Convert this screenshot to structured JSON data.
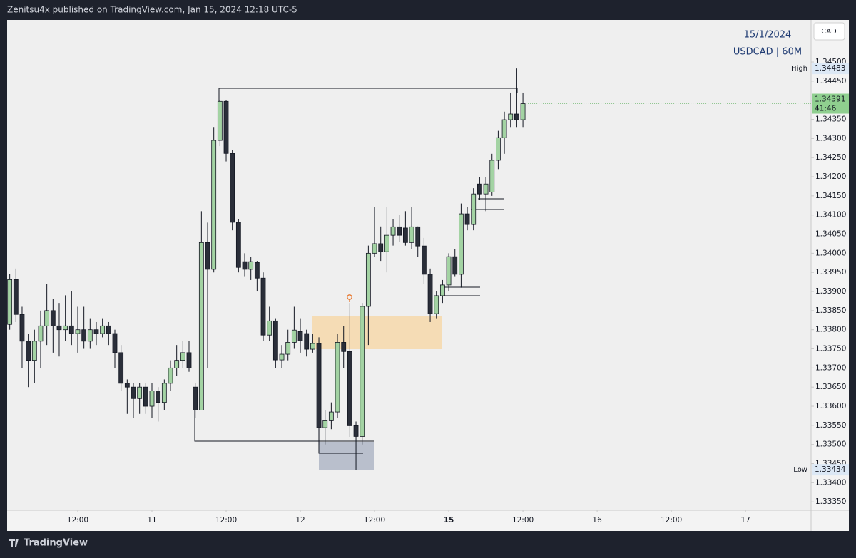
{
  "header": {
    "text": "Zenitsu4x published on TradingView.com, Jan 15, 2024 12:18 UTC-5"
  },
  "footer": {
    "brand": "TradingView"
  },
  "chart_data": {
    "type": "candlestick",
    "date_text": "15/1/2024",
    "symbol_text": "USDCAD | 60M",
    "currency": "CAD",
    "up_color": "#a3d3a3",
    "down_color": "#2a2e39",
    "open": [
      1.33814,
      1.33931,
      1.3384,
      1.3377,
      1.3372,
      1.3377,
      1.3381,
      1.3385,
      1.3381,
      1.338,
      1.3381,
      1.3379,
      1.338,
      1.3377,
      1.338,
      1.3379,
      1.3381,
      1.3379,
      1.3374,
      1.3366,
      1.3365,
      1.3362,
      1.3365,
      1.336,
      1.3364,
      1.3361,
      1.3366,
      1.337,
      1.3372,
      1.3374,
      1.3365,
      1.3359,
      1.34028,
      1.33958,
      1.34295,
      1.34397,
      1.34261,
      1.34081,
      1.33978,
      1.33958,
      1.33976,
      1.33935,
      1.33786,
      1.33823,
      1.33721,
      1.33736,
      1.33767,
      1.33795,
      1.3379,
      1.33749,
      1.33764,
      1.33544,
      1.33562,
      1.33585,
      1.33767,
      1.33743,
      1.33549,
      1.33521,
      1.33861,
      1.34,
      1.34025,
      1.34004,
      1.34047,
      1.34069,
      1.34066,
      1.34028,
      1.34069,
      1.34019,
      1.33945,
      1.33842,
      1.33889,
      1.33917,
      1.33991,
      1.33945,
      1.34103,
      1.34075,
      1.34181,
      1.34155,
      1.3416,
      1.34243,
      1.34302,
      1.34349,
      1.34364,
      1.34349
    ],
    "high": [
      1.33945,
      1.3396,
      1.3386,
      1.3379,
      1.338,
      1.3385,
      1.3392,
      1.3388,
      1.3387,
      1.3389,
      1.339,
      1.3386,
      1.3386,
      1.3383,
      1.3382,
      1.3383,
      1.3382,
      1.338,
      1.3376,
      1.3367,
      1.3366,
      1.3366,
      1.3366,
      1.3366,
      1.3365,
      1.3367,
      1.3372,
      1.3376,
      1.3377,
      1.3377,
      1.3366,
      1.3411,
      1.3408,
      1.3433,
      1.344,
      1.344,
      1.3427,
      1.3409,
      1.34,
      1.3399,
      1.3398,
      1.3395,
      1.3386,
      1.3383,
      1.3376,
      1.338,
      1.3386,
      1.3383,
      1.338,
      1.3379,
      1.3378,
      1.3359,
      1.3361,
      1.3379,
      1.3381,
      1.3387,
      1.3356,
      1.3387,
      1.3402,
      1.3412,
      1.3407,
      1.3412,
      1.3409,
      1.341,
      1.3411,
      1.3412,
      1.3407,
      1.3404,
      1.3396,
      1.339,
      1.3393,
      1.34,
      1.3401,
      1.3413,
      1.3412,
      1.3417,
      1.342,
      1.342,
      1.3426,
      1.3432,
      1.3437,
      1.3442,
      1.34483,
      1.3442
    ],
    "low": [
      1.338,
      1.3382,
      1.337,
      1.3365,
      1.3366,
      1.337,
      1.3376,
      1.3374,
      1.3373,
      1.3377,
      1.3376,
      1.3374,
      1.3375,
      1.3375,
      1.3376,
      1.3378,
      1.3376,
      1.337,
      1.3364,
      1.3358,
      1.3357,
      1.3358,
      1.3358,
      1.3357,
      1.3356,
      1.3359,
      1.3364,
      1.3368,
      1.337,
      1.3369,
      1.3357,
      1.3359,
      1.337,
      1.3395,
      1.3428,
      1.3424,
      1.3406,
      1.3395,
      1.3394,
      1.3393,
      1.339,
      1.3377,
      1.3377,
      1.337,
      1.337,
      1.3372,
      1.3375,
      1.3374,
      1.3373,
      1.3374,
      1.335,
      1.335,
      1.3354,
      1.3357,
      1.337,
      1.3352,
      1.33434,
      1.335,
      1.3376,
      1.3399,
      1.3398,
      1.3395,
      1.3402,
      1.3403,
      1.3402,
      1.3401,
      1.3399,
      1.3392,
      1.3382,
      1.3383,
      1.3387,
      1.339,
      1.3394,
      1.3391,
      1.3406,
      1.3406,
      1.3414,
      1.3411,
      1.3415,
      1.3422,
      1.3426,
      1.3433,
      1.3433,
      1.3433
    ],
    "close": [
      1.33931,
      1.3384,
      1.3377,
      1.3372,
      1.3377,
      1.3381,
      1.3385,
      1.3381,
      1.338,
      1.3381,
      1.3379,
      1.338,
      1.3377,
      1.338,
      1.3379,
      1.3381,
      1.3379,
      1.3374,
      1.3366,
      1.3365,
      1.3362,
      1.3365,
      1.336,
      1.3364,
      1.3361,
      1.3366,
      1.337,
      1.3372,
      1.3374,
      1.337,
      1.3359,
      1.34028,
      1.33958,
      1.34295,
      1.34397,
      1.34261,
      1.34081,
      1.33963,
      1.33958,
      1.33978,
      1.33935,
      1.33786,
      1.33823,
      1.33721,
      1.33736,
      1.33767,
      1.33799,
      1.33771,
      1.33749,
      1.33764,
      1.33544,
      1.33562,
      1.33585,
      1.33767,
      1.33743,
      1.33549,
      1.33521,
      1.33861,
      1.34,
      1.34025,
      1.34004,
      1.34047,
      1.34069,
      1.34047,
      1.34028,
      1.34069,
      1.34019,
      1.33945,
      1.33842,
      1.33889,
      1.33917,
      1.33991,
      1.33945,
      1.34103,
      1.34075,
      1.34155,
      1.34155,
      1.34181,
      1.34243,
      1.34302,
      1.34349,
      1.34364,
      1.34349,
      1.34391
    ],
    "countdown": "41:46",
    "high_marker": {
      "label": "High",
      "value": 1.34483
    },
    "low_marker": {
      "label": "Low",
      "value": 1.33434
    },
    "xlim": [
      -0.42,
      129.6
    ],
    "xticks": [
      {
        "value": 11,
        "label": "12:00"
      },
      {
        "value": 23,
        "label": "11"
      },
      {
        "value": 35,
        "label": "12:00"
      },
      {
        "value": 47,
        "label": "12"
      },
      {
        "value": 59,
        "label": "12:00"
      },
      {
        "value": 71,
        "label": "15"
      },
      {
        "value": 83,
        "label": "12:00"
      },
      {
        "value": 95,
        "label": "16"
      },
      {
        "value": 107,
        "label": "12:00"
      },
      {
        "value": 119,
        "label": "17"
      }
    ],
    "ylim": [
      1.33328,
      1.3461
    ],
    "yticks": [
      {
        "value": 1.3335,
        "label": "1.33350"
      },
      {
        "value": 1.334,
        "label": "1.33400"
      },
      {
        "value": 1.3345,
        "label": "1.33450"
      },
      {
        "value": 1.335,
        "label": "1.33500"
      },
      {
        "value": 1.3355,
        "label": "1.33550"
      },
      {
        "value": 1.336,
        "label": "1.33600"
      },
      {
        "value": 1.3365,
        "label": "1.33650"
      },
      {
        "value": 1.337,
        "label": "1.33700"
      },
      {
        "value": 1.3375,
        "label": "1.33750"
      },
      {
        "value": 1.338,
        "label": "1.33800"
      },
      {
        "value": 1.3385,
        "label": "1.33850"
      },
      {
        "value": 1.339,
        "label": "1.33900"
      },
      {
        "value": 1.3395,
        "label": "1.33950"
      },
      {
        "value": 1.34,
        "label": "1.34000"
      },
      {
        "value": 1.3405,
        "label": "1.34050"
      },
      {
        "value": 1.341,
        "label": "1.34100"
      },
      {
        "value": 1.3415,
        "label": "1.34150"
      },
      {
        "value": 1.342,
        "label": "1.34200"
      },
      {
        "value": 1.3425,
        "label": "1.34250"
      },
      {
        "value": 1.343,
        "label": "1.34300"
      },
      {
        "value": 1.3435,
        "label": "1.34350"
      },
      {
        "value": 1.344,
        "label": "1.34400"
      },
      {
        "value": 1.3445,
        "label": "1.34450"
      },
      {
        "value": 1.345,
        "label": "1.34500"
      }
    ],
    "grid": false
  }
}
